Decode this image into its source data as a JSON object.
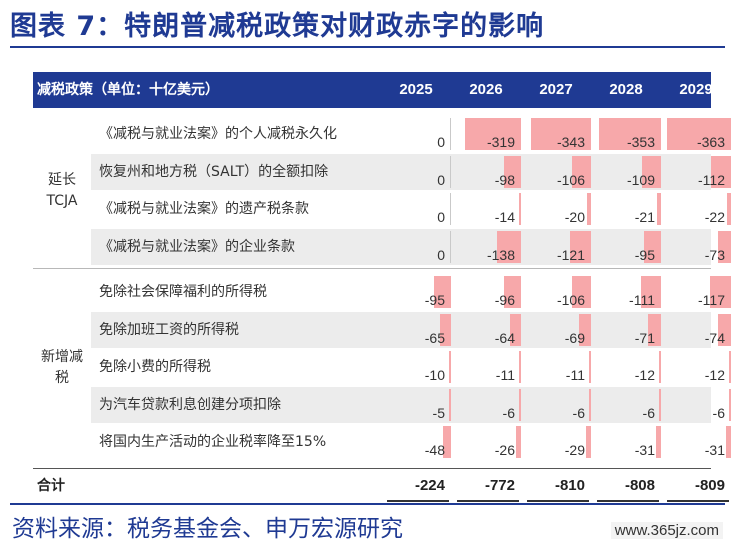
{
  "title": "图表 7：特朗普减税政策对财政赤字的影响",
  "table": {
    "header_label": "减税政策（单位：十亿美元）",
    "years": [
      "2025",
      "2026",
      "2027",
      "2028",
      "2029"
    ],
    "groups": [
      {
        "label_lines": [
          "延长",
          "TCJA"
        ],
        "rows": [
          {
            "name": "《减税与就业法案》的个人减税永久化",
            "values": [
              0,
              -319,
              -343,
              -353,
              -363
            ]
          },
          {
            "name": "恢复州和地方税（SALT）的全额扣除",
            "values": [
              0,
              -98,
              -106,
              -109,
              -112
            ]
          },
          {
            "name": "《减税与就业法案》的遗产税条款",
            "values": [
              0,
              -14,
              -20,
              -21,
              -22
            ]
          },
          {
            "name": "《减税与就业法案》的企业条款",
            "values": [
              0,
              -138,
              -121,
              -95,
              -73
            ]
          }
        ]
      },
      {
        "label_lines": [
          "新增减",
          "税"
        ],
        "rows": [
          {
            "name": "免除社会保障福利的所得税",
            "values": [
              -95,
              -96,
              -106,
              -111,
              -117
            ]
          },
          {
            "name": "免除加班工资的所得税",
            "values": [
              -65,
              -64,
              -69,
              -71,
              -74
            ]
          },
          {
            "name": "免除小费的所得税",
            "values": [
              -10,
              -11,
              -11,
              -12,
              -12
            ]
          },
          {
            "name": "为汽车贷款利息创建分项扣除",
            "values": [
              -5,
              -6,
              -6,
              -6,
              -6
            ]
          },
          {
            "name": "将国内生产活动的企业税率降至15%",
            "values": [
              -48,
              -26,
              -29,
              -31,
              -31
            ]
          }
        ]
      }
    ],
    "total": {
      "label": "合计",
      "values": [
        "-224",
        "-772",
        "-810",
        "-808",
        "-809"
      ]
    },
    "bar_max_abs": 363,
    "bar_color": "#f7a8aa"
  },
  "source": "资料来源：税务基金会、申万宏源研究",
  "watermark": "www.365jz.com",
  "colors": {
    "accent": "#1f3a93",
    "shade": "#ececec"
  }
}
